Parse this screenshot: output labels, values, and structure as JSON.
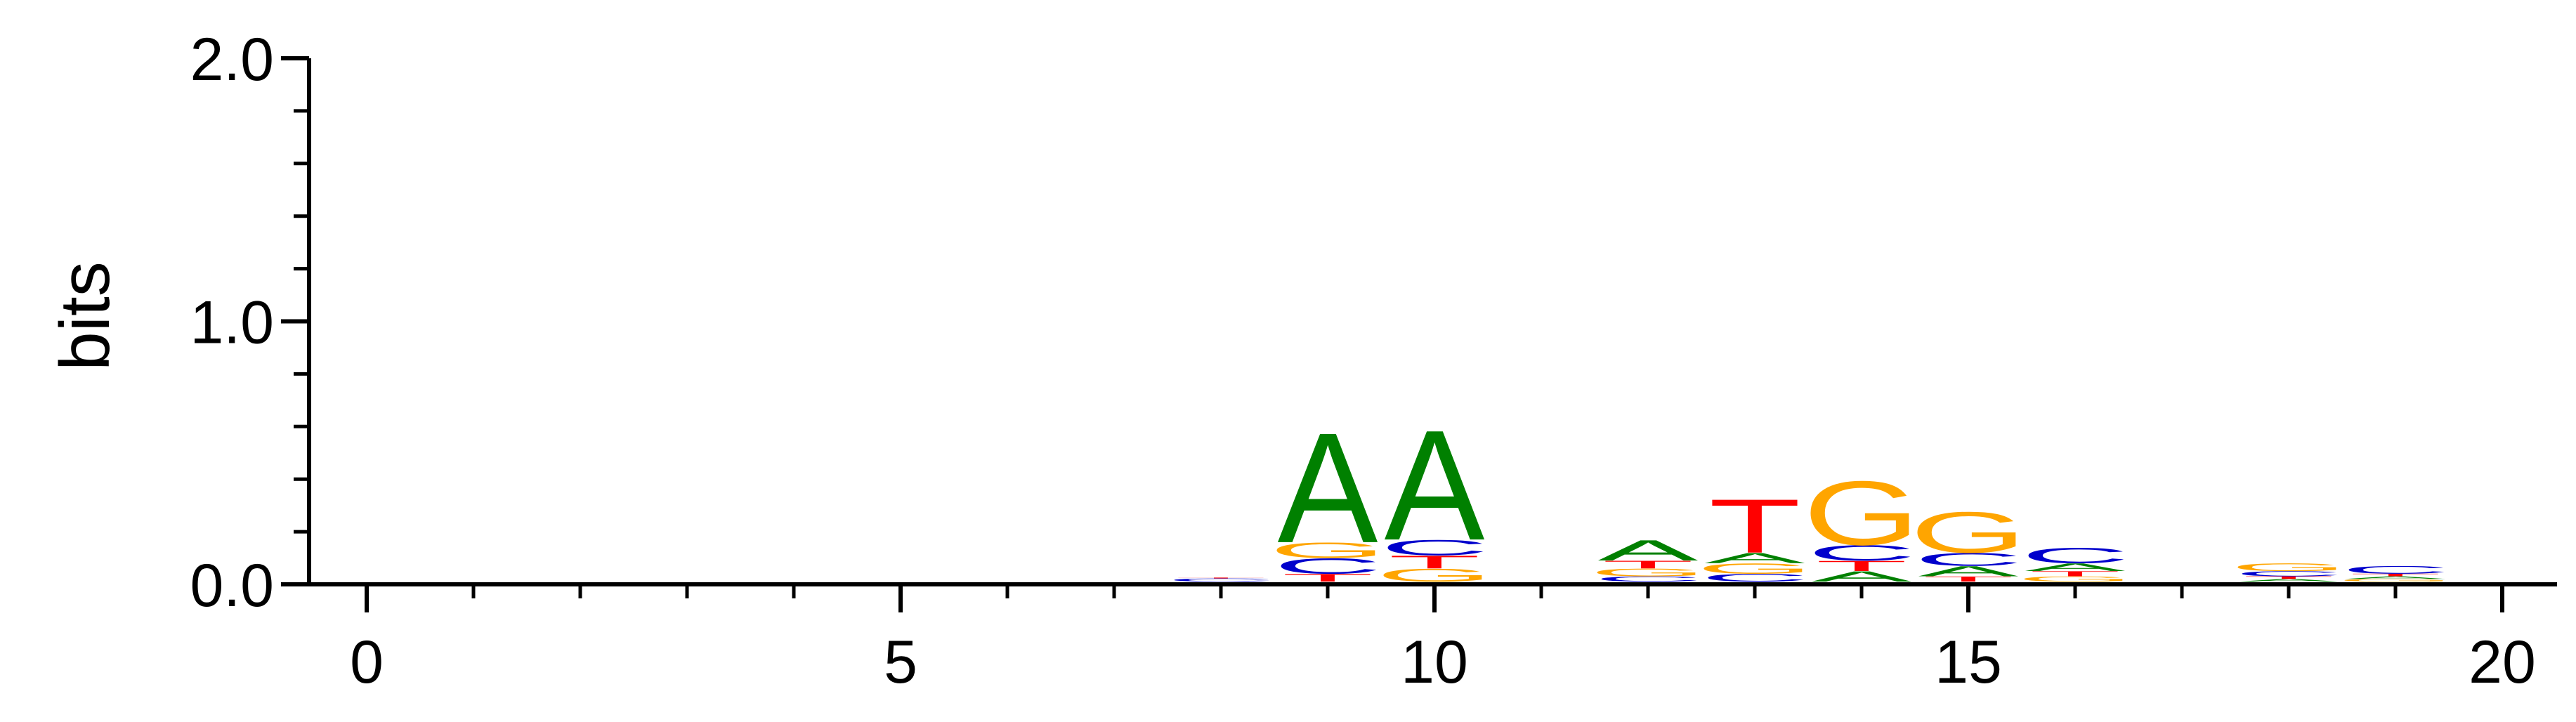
{
  "chart_data": {
    "type": "sequence-logo",
    "ylabel": "bits",
    "xlabel": "",
    "ylim": [
      0,
      2.0
    ],
    "xlim": [
      -0.7,
      20.5
    ],
    "y_ticks": [
      {
        "value": 0.0,
        "label": "0.0"
      },
      {
        "value": 1.0,
        "label": "1.0"
      },
      {
        "value": 2.0,
        "label": "2.0"
      }
    ],
    "y_minor_step": 0.2,
    "x_ticks": [
      {
        "value": 0,
        "label": "0"
      },
      {
        "value": 5,
        "label": "5"
      },
      {
        "value": 10,
        "label": "10"
      },
      {
        "value": 15,
        "label": "15"
      },
      {
        "value": 20,
        "label": "20"
      }
    ],
    "x_minor_step": 1,
    "colors": {
      "A": "#008000",
      "C": "#0000cc",
      "G": "#ffa500",
      "T": "#ff0000"
    },
    "positions": [
      {
        "pos": 8,
        "stack": [
          {
            "base": "C",
            "height": 0.012
          },
          {
            "base": "T",
            "height": 0.003
          }
        ]
      },
      {
        "pos": 9,
        "stack": [
          {
            "base": "T",
            "height": 0.03
          },
          {
            "base": "C",
            "height": 0.06
          },
          {
            "base": "G",
            "height": 0.06
          },
          {
            "base": "A",
            "height": 0.43
          }
        ]
      },
      {
        "pos": 10,
        "stack": [
          {
            "base": "G",
            "height": 0.05
          },
          {
            "base": "T",
            "height": 0.05
          },
          {
            "base": "C",
            "height": 0.06
          },
          {
            "base": "A",
            "height": 0.43
          }
        ]
      },
      {
        "pos": 12,
        "stack": [
          {
            "base": "C",
            "height": 0.02
          },
          {
            "base": "G",
            "height": 0.03
          },
          {
            "base": "T",
            "height": 0.03
          },
          {
            "base": "A",
            "height": 0.08
          }
        ]
      },
      {
        "pos": 13,
        "stack": [
          {
            "base": "C",
            "height": 0.03
          },
          {
            "base": "G",
            "height": 0.04
          },
          {
            "base": "A",
            "height": 0.04
          },
          {
            "base": "T",
            "height": 0.21
          }
        ]
      },
      {
        "pos": 14,
        "stack": [
          {
            "base": "A",
            "height": 0.04
          },
          {
            "base": "T",
            "height": 0.04
          },
          {
            "base": "C",
            "height": 0.06
          },
          {
            "base": "G",
            "height": 0.25
          }
        ]
      },
      {
        "pos": 15,
        "stack": [
          {
            "base": "T",
            "height": 0.02
          },
          {
            "base": "A",
            "height": 0.04
          },
          {
            "base": "C",
            "height": 0.05
          },
          {
            "base": "G",
            "height": 0.16
          }
        ]
      },
      {
        "pos": 16,
        "stack": [
          {
            "base": "G",
            "height": 0.02
          },
          {
            "base": "T",
            "height": 0.02
          },
          {
            "base": "A",
            "height": 0.03
          },
          {
            "base": "C",
            "height": 0.06
          }
        ]
      },
      {
        "pos": 18,
        "stack": [
          {
            "base": "A",
            "height": 0.01
          },
          {
            "base": "T",
            "height": 0.01
          },
          {
            "base": "C",
            "height": 0.02
          },
          {
            "base": "G",
            "height": 0.03
          }
        ]
      },
      {
        "pos": 19,
        "stack": [
          {
            "base": "G",
            "height": 0.01
          },
          {
            "base": "A",
            "height": 0.01
          },
          {
            "base": "T",
            "height": 0.01
          },
          {
            "base": "C",
            "height": 0.03
          }
        ]
      }
    ]
  }
}
